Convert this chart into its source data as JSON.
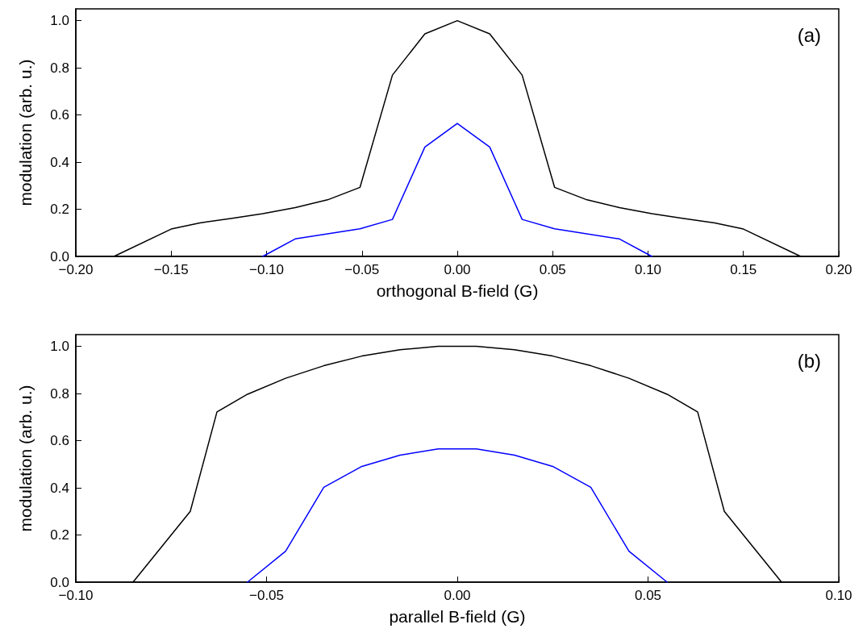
{
  "chart_data": [
    {
      "type": "line",
      "xlabel": "orthogonal B-field (G)",
      "ylabel": "modulation (arb. u.)",
      "annotations": [
        "(a)"
      ],
      "marker": "none",
      "line_style": "solid",
      "xlim": [
        -0.2,
        0.2
      ],
      "xticks": [
        {
          "value": -0.2,
          "label": "−0.20"
        },
        {
          "value": -0.15,
          "label": "−0.15"
        },
        {
          "value": -0.1,
          "label": "−0.10"
        },
        {
          "value": -0.05,
          "label": "−0.05"
        },
        {
          "value": 0,
          "label": "0.00"
        },
        {
          "value": 0.05,
          "label": "0.05"
        },
        {
          "value": 0.1,
          "label": "0.10"
        },
        {
          "value": 0.15,
          "label": "0.15"
        },
        {
          "value": 0.2,
          "label": "0.20"
        }
      ],
      "ylim": [
        0,
        1.05
      ],
      "yticks": [
        {
          "value": 0,
          "label": "0.0"
        },
        {
          "value": 0.2,
          "label": "0.2"
        },
        {
          "value": 0.4,
          "label": "0.4"
        },
        {
          "value": 0.6,
          "label": "0.6"
        },
        {
          "value": 0.8,
          "label": "0.8"
        },
        {
          "value": 1,
          "label": "1.0"
        }
      ],
      "series": [
        {
          "color": "#000000",
          "x": [
            -0.18,
            -0.15,
            -0.135,
            -0.118,
            -0.102,
            -0.085,
            -0.068,
            -0.051,
            -0.034,
            -0.017,
            0,
            0.017,
            0.034,
            0.051,
            0.068,
            0.085,
            0.102,
            0.118,
            0.135,
            0.15,
            0.18
          ],
          "values": [
            0,
            0.116,
            0.142,
            0.162,
            0.181,
            0.207,
            0.24,
            0.293,
            0.769,
            0.944,
            1.0,
            0.944,
            0.769,
            0.293,
            0.24,
            0.207,
            0.181,
            0.162,
            0.142,
            0.116,
            0
          ]
        },
        {
          "color": "#0000ff",
          "x": [
            -0.102,
            -0.085,
            -0.051,
            -0.034,
            -0.017,
            0,
            0.017,
            0.034,
            0.051,
            0.085,
            0.102
          ],
          "values": [
            0,
            0.074,
            0.117,
            0.157,
            0.464,
            0.564,
            0.464,
            0.157,
            0.117,
            0.074,
            0
          ]
        }
      ]
    },
    {
      "type": "line",
      "xlabel": "parallel B-field (G)",
      "ylabel": "modulation (arb. u.)",
      "annotations": [
        "(b)"
      ],
      "marker": "none",
      "line_style": "solid",
      "xlim": [
        -0.1,
        0.1
      ],
      "xticks": [
        {
          "value": -0.1,
          "label": "−0.10"
        },
        {
          "value": -0.05,
          "label": "−0.05"
        },
        {
          "value": 0,
          "label": "0.00"
        },
        {
          "value": 0.05,
          "label": "0.05"
        },
        {
          "value": 0.1,
          "label": "0.10"
        }
      ],
      "ylim": [
        0,
        1.05
      ],
      "yticks": [
        {
          "value": 0,
          "label": "0.0"
        },
        {
          "value": 0.2,
          "label": "0.2"
        },
        {
          "value": 0.4,
          "label": "0.4"
        },
        {
          "value": 0.6,
          "label": "0.6"
        },
        {
          "value": 0.8,
          "label": "0.8"
        },
        {
          "value": 1,
          "label": "1.0"
        }
      ],
      "series": [
        {
          "color": "#000000",
          "x": [
            -0.085,
            -0.07,
            -0.063,
            -0.055,
            -0.045,
            -0.035,
            -0.025,
            -0.015,
            -0.005,
            0.005,
            0.015,
            0.025,
            0.035,
            0.045,
            0.055,
            0.063,
            0.07,
            0.085
          ],
          "values": [
            0,
            0.3,
            0.722,
            0.797,
            0.865,
            0.918,
            0.959,
            0.986,
            1.0,
            1.0,
            0.986,
            0.959,
            0.918,
            0.865,
            0.797,
            0.722,
            0.3,
            0
          ]
        },
        {
          "color": "#0000ff",
          "x": [
            -0.055,
            -0.045,
            -0.035,
            -0.025,
            -0.015,
            -0.005,
            0.005,
            0.015,
            0.025,
            0.035,
            0.045,
            0.055
          ],
          "values": [
            0,
            0.131,
            0.402,
            0.491,
            0.539,
            0.565,
            0.565,
            0.539,
            0.491,
            0.402,
            0.131,
            0
          ]
        }
      ]
    }
  ]
}
